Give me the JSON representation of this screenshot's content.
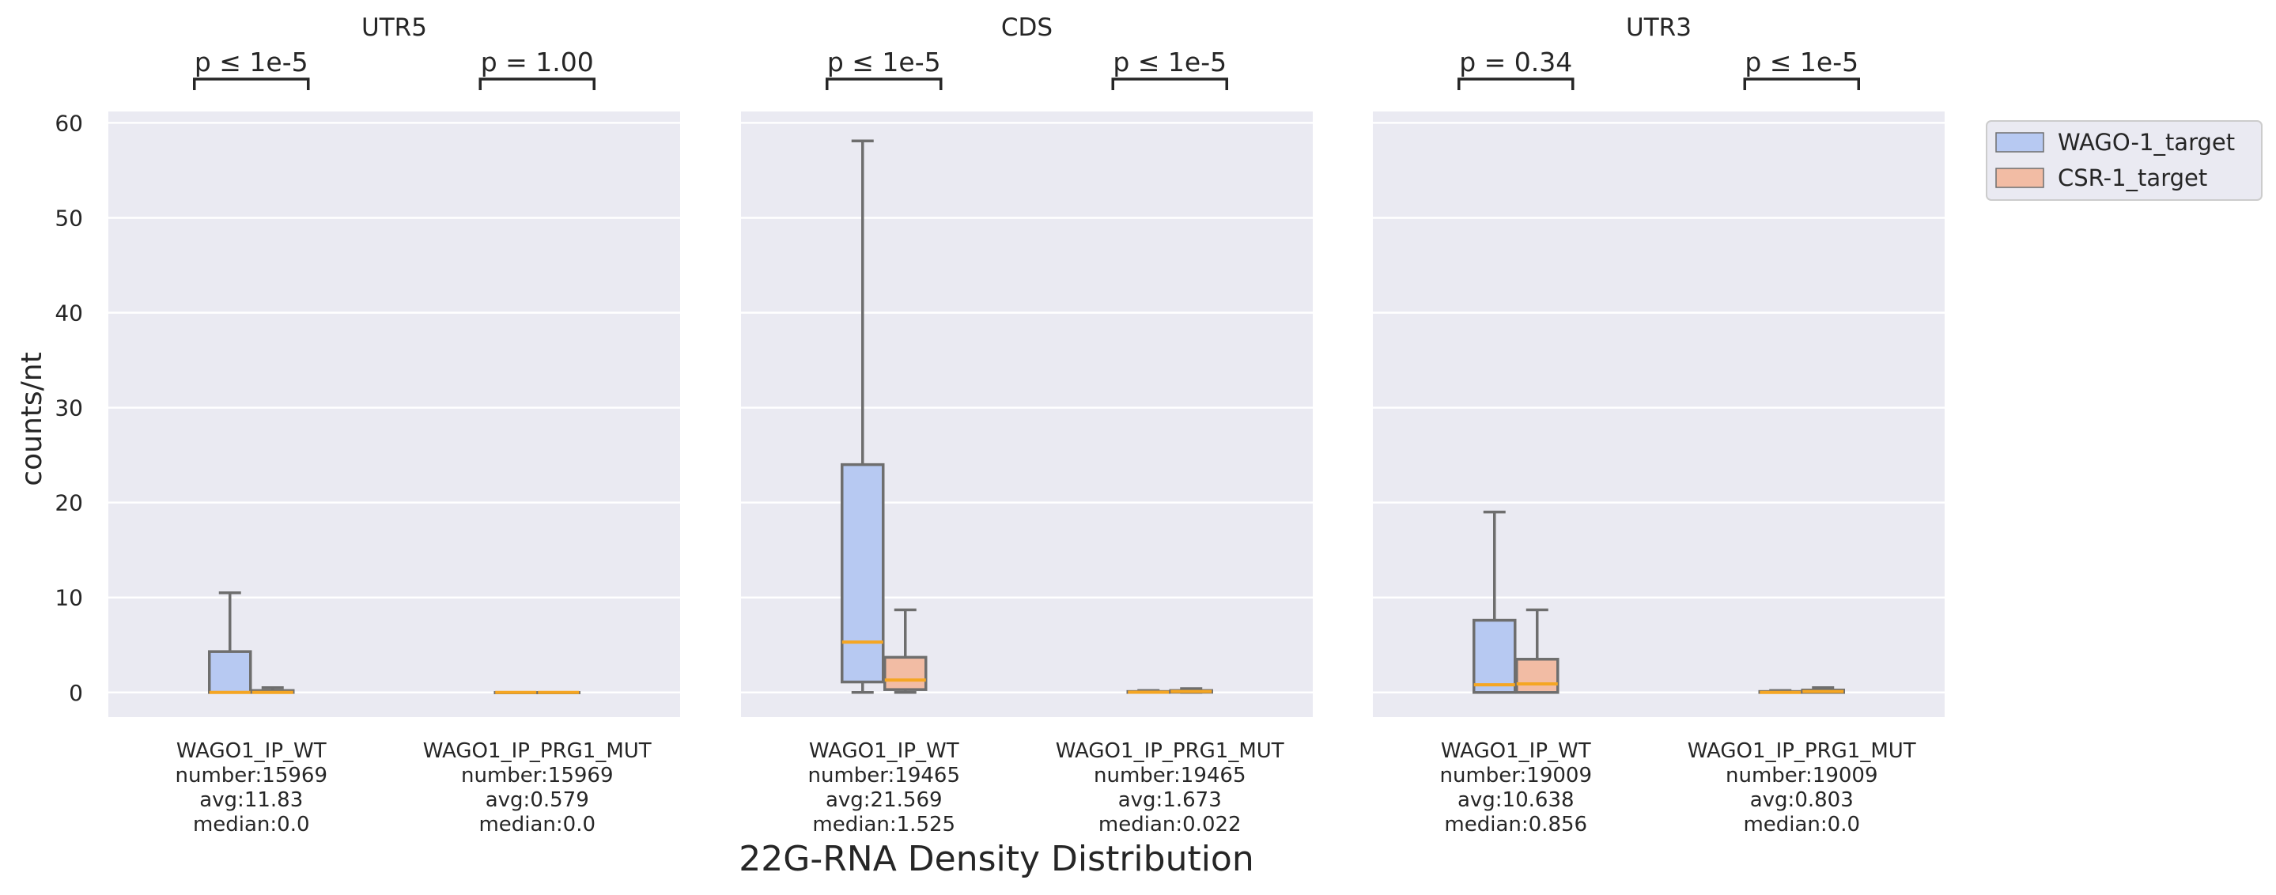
{
  "chart_data": {
    "type": "box",
    "title": "",
    "xlabel": "22G-RNA Density Distribution",
    "ylabel": "counts/nt",
    "ylim": [
      -2.6,
      61.2
    ],
    "yticks": [
      0,
      10,
      20,
      30,
      40,
      50,
      60
    ],
    "grid": true,
    "legend": {
      "placement": "outside-top-right",
      "entries": [
        {
          "name": "WAGO-1_target",
          "color": "#b7c9f2"
        },
        {
          "name": "CSR-1_target",
          "color": "#f2bca4"
        }
      ]
    },
    "colors": {
      "panel_bg": "#eaeaf2",
      "grid": "#ffffff",
      "box_edge": "#6e6e6e",
      "median": "#f5a623",
      "bracket": "#262626"
    },
    "panels": [
      {
        "title": "UTR5",
        "groups": [
          {
            "label": [
              "WAGO1_IP_WT",
              "number:15969",
              "avg:11.83",
              "median:0.0"
            ],
            "pvalue": "p ≤ 1e-5",
            "boxes": [
              {
                "series": "WAGO-1_target",
                "whislo": 0,
                "q1": 0,
                "med": 0,
                "q3": 4.3,
                "whishi": 10.5
              },
              {
                "series": "CSR-1_target",
                "whislo": 0,
                "q1": 0,
                "med": 0,
                "q3": 0.2,
                "whishi": 0.5
              }
            ]
          },
          {
            "label": [
              "WAGO1_IP_PRG1_MUT",
              "number:15969",
              "avg:0.579",
              "median:0.0"
            ],
            "pvalue": "p = 1.00",
            "boxes": [
              {
                "series": "WAGO-1_target",
                "whislo": 0,
                "q1": 0,
                "med": 0,
                "q3": 0,
                "whishi": 0
              },
              {
                "series": "CSR-1_target",
                "whislo": 0,
                "q1": 0,
                "med": 0,
                "q3": 0,
                "whishi": 0
              }
            ]
          }
        ]
      },
      {
        "title": "CDS",
        "groups": [
          {
            "label": [
              "WAGO1_IP_WT",
              "number:19465",
              "avg:21.569",
              "median:1.525"
            ],
            "pvalue": "p ≤ 1e-5",
            "boxes": [
              {
                "series": "WAGO-1_target",
                "whislo": 0,
                "q1": 1.1,
                "med": 5.3,
                "q3": 24.0,
                "whishi": 58.1
              },
              {
                "series": "CSR-1_target",
                "whislo": 0,
                "q1": 0.3,
                "med": 1.3,
                "q3": 3.7,
                "whishi": 8.7
              }
            ]
          },
          {
            "label": [
              "WAGO1_IP_PRG1_MUT",
              "number:19465",
              "avg:1.673",
              "median:0.022"
            ],
            "pvalue": "p ≤ 1e-5",
            "boxes": [
              {
                "series": "WAGO-1_target",
                "whislo": 0,
                "q1": 0,
                "med": 0.02,
                "q3": 0.1,
                "whishi": 0.2
              },
              {
                "series": "CSR-1_target",
                "whislo": 0,
                "q1": 0.02,
                "med": 0.1,
                "q3": 0.2,
                "whishi": 0.4
              }
            ]
          }
        ]
      },
      {
        "title": "UTR3",
        "groups": [
          {
            "label": [
              "WAGO1_IP_WT",
              "number:19009",
              "avg:10.638",
              "median:0.856"
            ],
            "pvalue": "p = 0.34",
            "boxes": [
              {
                "series": "WAGO-1_target",
                "whislo": 0,
                "q1": 0,
                "med": 0.8,
                "q3": 7.6,
                "whishi": 19.0
              },
              {
                "series": "CSR-1_target",
                "whislo": 0,
                "q1": 0,
                "med": 0.9,
                "q3": 3.5,
                "whishi": 8.7
              }
            ]
          },
          {
            "label": [
              "WAGO1_IP_PRG1_MUT",
              "number:19009",
              "avg:0.803",
              "median:0.0"
            ],
            "pvalue": "p ≤ 1e-5",
            "boxes": [
              {
                "series": "WAGO-1_target",
                "whislo": 0,
                "q1": 0,
                "med": 0,
                "q3": 0.1,
                "whishi": 0.2
              },
              {
                "series": "CSR-1_target",
                "whislo": 0,
                "q1": 0,
                "med": 0.1,
                "q3": 0.25,
                "whishi": 0.5
              }
            ]
          }
        ]
      }
    ]
  }
}
